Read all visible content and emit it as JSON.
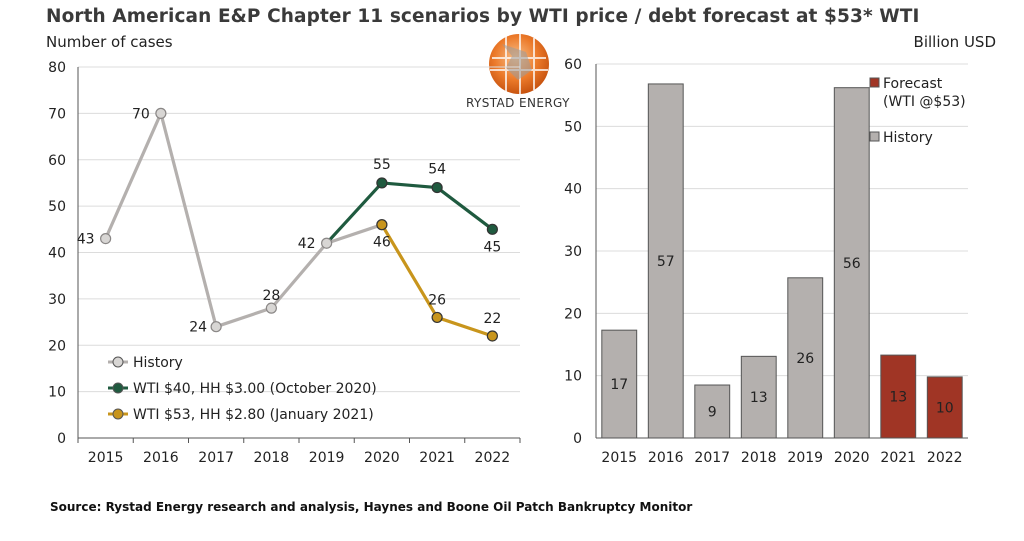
{
  "title": "North American E&P Chapter 11 scenarios by WTI price / debt forecast at $53* WTI",
  "left_unit": "Number of cases",
  "right_unit": "Billion USD",
  "logo_text": "RYSTAD ENERGY",
  "source": "Source: Rystad Energy research and analysis, Haynes and Boone Oil Patch Bankruptcy Monitor",
  "colors": {
    "history": "#b4b0ae",
    "history_marker": "#d8d6d4",
    "wti40": "#1f5a3f",
    "wti53": "#c8951c",
    "forecast_bar": "#a03525",
    "bar_outline": "#555555",
    "grid": "#dcdcdc"
  },
  "chart_data": [
    {
      "type": "line",
      "ylim": [
        0,
        80
      ],
      "yticks": [
        0,
        10,
        20,
        30,
        40,
        50,
        60,
        70,
        80
      ],
      "categories": [
        "2015",
        "2016",
        "2017",
        "2018",
        "2019",
        "2020",
        "2021",
        "2022"
      ],
      "legend_position": "bottom-left",
      "series": [
        {
          "name": "History",
          "color_key": "history",
          "values": [
            43,
            70,
            24,
            28,
            42,
            46,
            null,
            null
          ],
          "labels": [
            "43",
            "70",
            "24",
            "28",
            "42",
            "",
            "",
            ""
          ]
        },
        {
          "name": "WTI $40, HH $3.00 (October 2020)",
          "color_key": "wti40",
          "values": [
            null,
            null,
            null,
            null,
            42,
            55,
            54,
            45
          ],
          "labels": [
            "",
            "",
            "",
            "",
            "",
            "55",
            "54",
            "45"
          ]
        },
        {
          "name": "WTI $53, HH $2.80 (January 2021)",
          "color_key": "wti53",
          "values": [
            null,
            null,
            null,
            null,
            null,
            46,
            26,
            22
          ],
          "labels": [
            "",
            "",
            "",
            "",
            "",
            "46",
            "26",
            "22"
          ]
        }
      ]
    },
    {
      "type": "bar",
      "ylim": [
        0,
        60
      ],
      "yticks": [
        0,
        10,
        20,
        30,
        40,
        50,
        60
      ],
      "categories": [
        "2015",
        "2016",
        "2017",
        "2018",
        "2019",
        "2020",
        "2021",
        "2022"
      ],
      "values": [
        17.3,
        56.8,
        8.5,
        13.1,
        25.7,
        56.2,
        13.3,
        9.8
      ],
      "labels": [
        "17",
        "57",
        "9",
        "13",
        "26",
        "56",
        "13",
        "10"
      ],
      "kinds": [
        "history",
        "history",
        "history",
        "history",
        "history",
        "history",
        "forecast",
        "forecast"
      ],
      "legend_position": "top-right",
      "legend": [
        {
          "name": "Forecast",
          "sub": "(WTI @$53)",
          "color_key": "forecast_bar"
        },
        {
          "name": "History",
          "sub": "",
          "color_key": "history"
        }
      ]
    }
  ]
}
